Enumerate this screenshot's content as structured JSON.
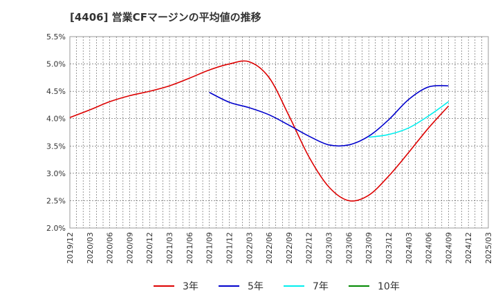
{
  "chart_data": {
    "type": "line",
    "title": "[4406]  営業CFマージンの平均値の推移",
    "xlabel": "",
    "ylabel": "",
    "x_tick_labels": [
      "2019/12",
      "2020/03",
      "2020/06",
      "2020/09",
      "2020/12",
      "2021/03",
      "2021/06",
      "2021/09",
      "2021/12",
      "2022/03",
      "2022/06",
      "2022/09",
      "2022/12",
      "2023/03",
      "2023/06",
      "2023/09",
      "2023/12",
      "2024/03",
      "2024/06",
      "2024/09",
      "2024/12",
      "2025/03"
    ],
    "y_tick_labels": [
      "2.0%",
      "2.5%",
      "3.0%",
      "3.5%",
      "4.0%",
      "4.5%",
      "5.0%",
      "5.5%"
    ],
    "ylim": [
      2.0,
      5.5
    ],
    "grid": true,
    "legend_position": "bottom",
    "series": [
      {
        "name": "3年",
        "color": "#dd0000",
        "x": [
          "2019/12",
          "2020/03",
          "2020/06",
          "2020/09",
          "2020/12",
          "2021/03",
          "2021/06",
          "2021/09",
          "2021/12",
          "2022/03",
          "2022/06",
          "2022/09",
          "2022/12",
          "2023/03",
          "2023/06",
          "2023/09",
          "2023/12",
          "2024/03",
          "2024/06",
          "2024/09"
        ],
        "values": [
          4.02,
          4.16,
          4.31,
          4.42,
          4.5,
          4.6,
          4.74,
          4.89,
          5.0,
          5.04,
          4.75,
          4.05,
          3.3,
          2.75,
          2.5,
          2.6,
          2.95,
          3.38,
          3.83,
          4.23
        ]
      },
      {
        "name": "5年",
        "color": "#0000cc",
        "x": [
          "2021/09",
          "2021/12",
          "2022/03",
          "2022/06",
          "2022/09",
          "2022/12",
          "2023/03",
          "2023/06",
          "2023/09",
          "2023/12",
          "2024/03",
          "2024/06",
          "2024/09"
        ],
        "values": [
          4.48,
          4.3,
          4.2,
          4.07,
          3.88,
          3.68,
          3.52,
          3.52,
          3.68,
          3.98,
          4.35,
          4.58,
          4.6
        ]
      },
      {
        "name": "7年",
        "color": "#00eeee",
        "x": [
          "2023/09",
          "2023/12",
          "2024/03",
          "2024/06",
          "2024/09"
        ],
        "values": [
          3.66,
          3.71,
          3.83,
          4.05,
          4.31
        ]
      },
      {
        "name": "10年",
        "color": "#008800",
        "x": [],
        "values": []
      }
    ]
  }
}
